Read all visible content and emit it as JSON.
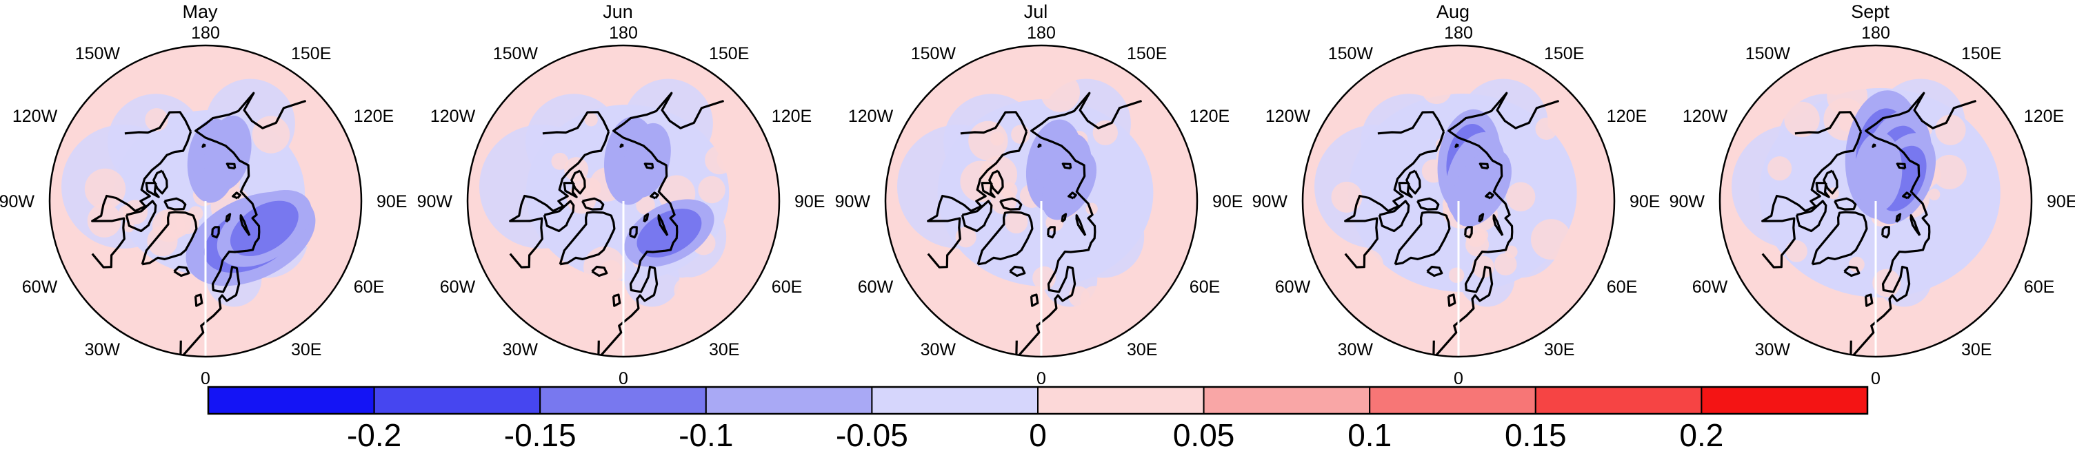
{
  "figure": {
    "panels": [
      {
        "title": "May",
        "blue_anomalies": [
          {
            "lon": 170,
            "lat": 76,
            "strength": 0.07
          },
          {
            "lon": 50,
            "lat": 70,
            "strength": 0.2
          },
          {
            "lon": 65,
            "lat": 68,
            "strength": 0.12
          },
          {
            "lon": 155,
            "lat": 72,
            "strength": 0.05
          }
        ]
      },
      {
        "title": "Jun",
        "blue_anomalies": [
          {
            "lon": 170,
            "lat": 76,
            "strength": 0.08
          },
          {
            "lon": 55,
            "lat": 71,
            "strength": 0.1
          },
          {
            "lon": 150,
            "lat": 74,
            "strength": 0.05
          }
        ]
      },
      {
        "title": "Jul",
        "blue_anomalies": [
          {
            "lon": 160,
            "lat": 77,
            "strength": 0.09
          },
          {
            "lon": 140,
            "lat": 78,
            "strength": 0.07
          },
          {
            "lon": 120,
            "lat": 79,
            "strength": 0.05
          }
        ]
      },
      {
        "title": "Aug",
        "blue_anomalies": [
          {
            "lon": 165,
            "lat": 76,
            "strength": 0.12
          },
          {
            "lon": 145,
            "lat": 80,
            "strength": 0.09
          },
          {
            "lon": 120,
            "lat": 81,
            "strength": 0.07
          }
        ]
      },
      {
        "title": "Sept",
        "blue_anomalies": [
          {
            "lon": 170,
            "lat": 74,
            "strength": 0.18
          },
          {
            "lon": 150,
            "lat": 76,
            "strength": 0.14
          },
          {
            "lon": 130,
            "lat": 78,
            "strength": 0.1
          },
          {
            "lon": 175,
            "lat": 80,
            "strength": 0.06
          }
        ]
      }
    ],
    "longitude_labels": [
      "180",
      "150E",
      "120E",
      "90E",
      "60E",
      "30E",
      "0",
      "30W",
      "60W",
      "90W",
      "120W",
      "150W"
    ],
    "colorbar": {
      "boundaries": [
        -0.25,
        -0.2,
        -0.15,
        -0.1,
        -0.05,
        0,
        0.05,
        0.1,
        0.15,
        0.2,
        0.25
      ],
      "tick_labels": [
        "-0.2",
        "-0.15",
        "-0.1",
        "-0.05",
        "0",
        "0.05",
        "0.1",
        "0.15",
        "0.2"
      ],
      "colors": [
        "#1414f5",
        "#4646f0",
        "#7878ef",
        "#a9a9f5",
        "#d6d6fc",
        "#fcd8d8",
        "#f9a6a6",
        "#f77676",
        "#f64444",
        "#f41414"
      ]
    }
  }
}
